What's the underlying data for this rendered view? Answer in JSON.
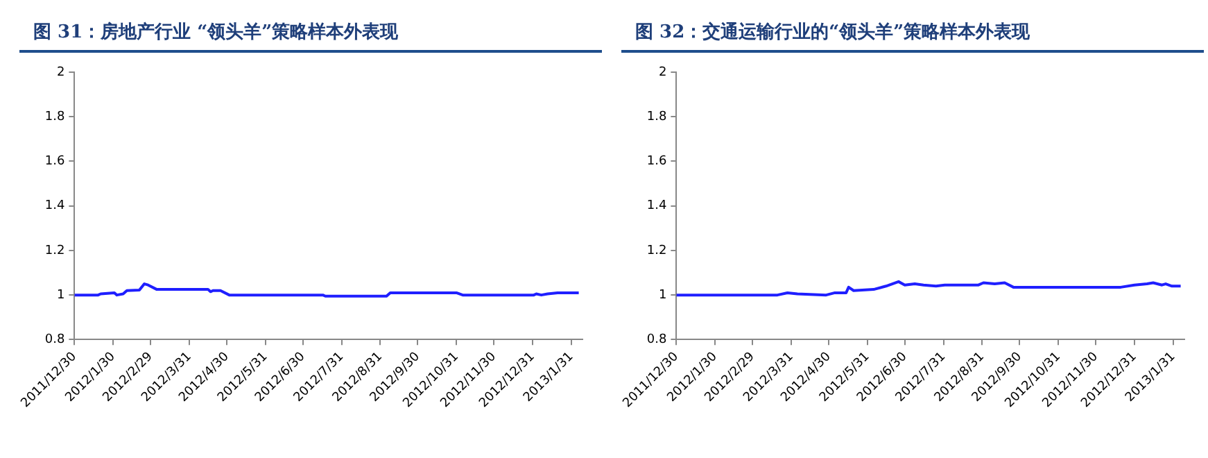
{
  "chart_data": [
    {
      "type": "line",
      "title": "图 31：房地产行业 “领头羊”策略样本外表现",
      "x": [
        "2011-12-30",
        "2012-01-18",
        "2012-01-20",
        "2012-01-31",
        "2012-02-02",
        "2012-02-07",
        "2012-02-10",
        "2012-02-20",
        "2012-02-24",
        "2012-02-27",
        "2012-03-05",
        "2012-04-15",
        "2012-04-17",
        "2012-04-19",
        "2012-04-25",
        "2012-05-02",
        "2012-07-16",
        "2012-07-18",
        "2012-09-05",
        "2012-09-08",
        "2012-10-31",
        "2012-11-05",
        "2013-01-01",
        "2013-01-03",
        "2013-01-07",
        "2013-01-12",
        "2013-01-20",
        "2013-02-06"
      ],
      "series": [
        {
          "color": "#1f1fff",
          "values": [
            1.0,
            1.0,
            1.005,
            1.01,
            1.0,
            1.005,
            1.02,
            1.022,
            1.05,
            1.045,
            1.025,
            1.025,
            1.015,
            1.02,
            1.02,
            1.0,
            1.0,
            0.995,
            0.995,
            1.01,
            1.01,
            1.0,
            1.0,
            1.005,
            1.0,
            1.005,
            1.01,
            1.01
          ]
        }
      ],
      "xlim": [
        "2011-12-30",
        "2013-02-09"
      ],
      "xticks": [
        {
          "value": "2011-12-30",
          "label": "2011/12/30"
        },
        {
          "value": "2012-01-30",
          "label": "2012/1/30"
        },
        {
          "value": "2012-02-29",
          "label": "2012/2/29"
        },
        {
          "value": "2012-03-31",
          "label": "2012/3/31"
        },
        {
          "value": "2012-04-30",
          "label": "2012/4/30"
        },
        {
          "value": "2012-05-31",
          "label": "2012/5/31"
        },
        {
          "value": "2012-06-30",
          "label": "2012/6/30"
        },
        {
          "value": "2012-07-31",
          "label": "2012/7/31"
        },
        {
          "value": "2012-08-31",
          "label": "2012/8/31"
        },
        {
          "value": "2012-09-30",
          "label": "2012/9/30"
        },
        {
          "value": "2012-10-31",
          "label": "2012/10/31"
        },
        {
          "value": "2012-11-30",
          "label": "2012/11/30"
        },
        {
          "value": "2012-12-31",
          "label": "2012/12/31"
        },
        {
          "value": "2013-01-31",
          "label": "2013/1/31"
        }
      ],
      "ylim": [
        0.8,
        2
      ],
      "yticks": [
        0.8,
        1,
        1.2,
        1.4,
        1.6,
        1.8,
        2
      ],
      "grid": false,
      "legend": false,
      "marker": "none",
      "line_style": "solid"
    },
    {
      "type": "line",
      "title": "图 32：交通运输行业的“领头羊”策略样本外表现",
      "x": [
        "2011-12-30",
        "2012-03-20",
        "2012-03-28",
        "2012-04-05",
        "2012-04-28",
        "2012-05-05",
        "2012-05-14",
        "2012-05-16",
        "2012-05-20",
        "2012-06-05",
        "2012-06-15",
        "2012-06-25",
        "2012-06-30",
        "2012-07-08",
        "2012-07-15",
        "2012-07-25",
        "2012-08-01",
        "2012-08-28",
        "2012-09-01",
        "2012-09-10",
        "2012-09-18",
        "2012-09-25",
        "2012-12-20",
        "2012-12-31",
        "2013-01-10",
        "2013-01-15",
        "2013-01-22",
        "2013-01-25",
        "2013-01-30",
        "2013-02-06"
      ],
      "series": [
        {
          "color": "#1f1fff",
          "values": [
            1.0,
            1.0,
            1.01,
            1.005,
            1.0,
            1.01,
            1.01,
            1.035,
            1.02,
            1.025,
            1.04,
            1.06,
            1.045,
            1.05,
            1.045,
            1.04,
            1.045,
            1.045,
            1.055,
            1.05,
            1.055,
            1.035,
            1.035,
            1.045,
            1.05,
            1.055,
            1.045,
            1.05,
            1.04,
            1.04
          ]
        }
      ],
      "xlim": [
        "2011-12-30",
        "2013-02-09"
      ],
      "xticks": [
        {
          "value": "2011-12-30",
          "label": "2011/12/30"
        },
        {
          "value": "2012-01-30",
          "label": "2012/1/30"
        },
        {
          "value": "2012-02-29",
          "label": "2012/2/29"
        },
        {
          "value": "2012-03-31",
          "label": "2012/3/31"
        },
        {
          "value": "2012-04-30",
          "label": "2012/4/30"
        },
        {
          "value": "2012-05-31",
          "label": "2012/5/31"
        },
        {
          "value": "2012-06-30",
          "label": "2012/6/30"
        },
        {
          "value": "2012-07-31",
          "label": "2012/7/31"
        },
        {
          "value": "2012-08-31",
          "label": "2012/8/31"
        },
        {
          "value": "2012-09-30",
          "label": "2012/9/30"
        },
        {
          "value": "2012-10-31",
          "label": "2012/10/31"
        },
        {
          "value": "2012-11-30",
          "label": "2012/11/30"
        },
        {
          "value": "2012-12-31",
          "label": "2012/12/31"
        },
        {
          "value": "2013-01-31",
          "label": "2013/1/31"
        }
      ],
      "ylim": [
        0.8,
        2
      ],
      "yticks": [
        0.8,
        1,
        1.2,
        1.4,
        1.6,
        1.8,
        2
      ],
      "grid": false,
      "legend": false,
      "marker": "none",
      "line_style": "solid"
    }
  ]
}
